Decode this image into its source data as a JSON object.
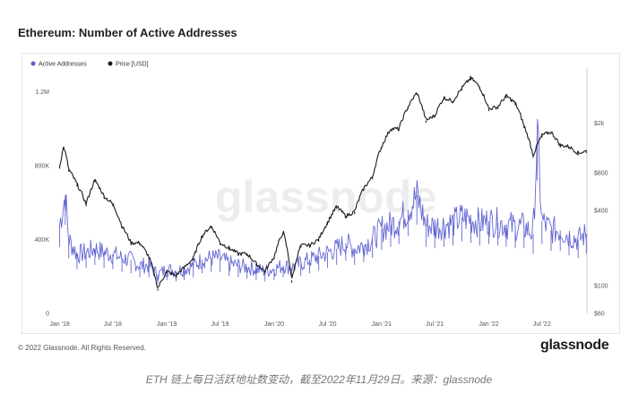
{
  "header": {
    "title": "Ethereum: Number of Active Addresses"
  },
  "footer": {
    "copyright": "© 2022 Glassnode. All Rights Reserved.",
    "logo_text": "glassnode",
    "caption": "ETH 链上每日活跃地址数变动，截至2022年11月29日。来源：glassnode"
  },
  "watermark": "glassnode",
  "chart_data": {
    "type": "line",
    "title": "Ethereum: Number of Active Addresses",
    "x_ticks": [
      "Jan '18",
      "Jul '18",
      "Jan '19",
      "Jul '19",
      "Jan '20",
      "Jul '20",
      "Jan '21",
      "Jul '21",
      "Jan '22",
      "Jul '22"
    ],
    "left_axis": {
      "ticks": [
        "0",
        "400K",
        "800K",
        "1.2M"
      ],
      "range": [
        0,
        1300000
      ]
    },
    "right_axis": {
      "ticks": [
        "$60",
        "$100",
        "$400",
        "$800",
        "$2k"
      ],
      "scale": "log",
      "range": [
        60,
        5000
      ]
    },
    "legend": {
      "position": "top-left"
    },
    "grid": false,
    "series": [
      {
        "name": "Active Addresses",
        "axis": "left",
        "color": "#5b5fd1",
        "points": [
          [
            "2018-01",
            480000
          ],
          [
            "2018-01-20",
            640000
          ],
          [
            "2018-02",
            400000
          ],
          [
            "2018-03",
            320000
          ],
          [
            "2018-04",
            330000
          ],
          [
            "2018-05",
            350000
          ],
          [
            "2018-06",
            330000
          ],
          [
            "2018-07",
            320000
          ],
          [
            "2018-08",
            300000
          ],
          [
            "2018-09",
            290000
          ],
          [
            "2018-10",
            260000
          ],
          [
            "2018-11",
            260000
          ],
          [
            "2018-12",
            210000
          ],
          [
            "2019-01",
            240000
          ],
          [
            "2019-02",
            230000
          ],
          [
            "2019-03",
            240000
          ],
          [
            "2019-04",
            260000
          ],
          [
            "2019-05",
            290000
          ],
          [
            "2019-06",
            300000
          ],
          [
            "2019-07",
            300000
          ],
          [
            "2019-08",
            270000
          ],
          [
            "2019-09",
            260000
          ],
          [
            "2019-10",
            250000
          ],
          [
            "2019-11",
            240000
          ],
          [
            "2019-12",
            230000
          ],
          [
            "2020-01",
            240000
          ],
          [
            "2020-02",
            260000
          ],
          [
            "2020-03",
            250000
          ],
          [
            "2020-04",
            270000
          ],
          [
            "2020-05",
            290000
          ],
          [
            "2020-06",
            310000
          ],
          [
            "2020-07",
            330000
          ],
          [
            "2020-08",
            350000
          ],
          [
            "2020-09",
            380000
          ],
          [
            "2020-10",
            350000
          ],
          [
            "2020-11",
            370000
          ],
          [
            "2020-12",
            400000
          ],
          [
            "2021-01",
            460000
          ],
          [
            "2021-02",
            480000
          ],
          [
            "2021-03",
            500000
          ],
          [
            "2021-04",
            560000
          ],
          [
            "2021-05",
            640000
          ],
          [
            "2021-06",
            480000
          ],
          [
            "2021-07",
            470000
          ],
          [
            "2021-08",
            480000
          ],
          [
            "2021-09",
            490000
          ],
          [
            "2021-10",
            520000
          ],
          [
            "2021-11",
            510000
          ],
          [
            "2021-12",
            490000
          ],
          [
            "2022-01",
            500000
          ],
          [
            "2022-02",
            490000
          ],
          [
            "2022-03",
            480000
          ],
          [
            "2022-04",
            470000
          ],
          [
            "2022-05",
            470000
          ],
          [
            "2022-06",
            430000
          ],
          [
            "2022-06-15",
            960000
          ],
          [
            "2022-07",
            500000
          ],
          [
            "2022-08",
            450000
          ],
          [
            "2022-09",
            450000
          ],
          [
            "2022-10",
            420000
          ],
          [
            "2022-11",
            400000
          ],
          [
            "2022-11-29",
            430000
          ]
        ]
      },
      {
        "name": "Price [USD]",
        "axis": "right",
        "color": "#1a1a1a",
        "points": [
          [
            "2018-01",
            900
          ],
          [
            "2018-01-15",
            1300
          ],
          [
            "2018-02",
            850
          ],
          [
            "2018-03",
            650
          ],
          [
            "2018-04",
            450
          ],
          [
            "2018-05",
            700
          ],
          [
            "2018-06",
            520
          ],
          [
            "2018-07",
            450
          ],
          [
            "2018-08",
            300
          ],
          [
            "2018-09",
            220
          ],
          [
            "2018-10",
            220
          ],
          [
            "2018-11",
            170
          ],
          [
            "2018-12",
            95
          ],
          [
            "2019-01",
            130
          ],
          [
            "2019-02",
            120
          ],
          [
            "2019-03",
            140
          ],
          [
            "2019-04",
            165
          ],
          [
            "2019-05",
            250
          ],
          [
            "2019-06",
            300
          ],
          [
            "2019-07",
            220
          ],
          [
            "2019-08",
            200
          ],
          [
            "2019-09",
            180
          ],
          [
            "2019-10",
            180
          ],
          [
            "2019-11",
            150
          ],
          [
            "2019-12",
            130
          ],
          [
            "2020-01",
            170
          ],
          [
            "2020-02",
            270
          ],
          [
            "2020-03",
            110
          ],
          [
            "2020-04",
            210
          ],
          [
            "2020-05",
            210
          ],
          [
            "2020-06",
            235
          ],
          [
            "2020-07",
            320
          ],
          [
            "2020-08",
            430
          ],
          [
            "2020-09",
            360
          ],
          [
            "2020-10",
            390
          ],
          [
            "2020-11",
            600
          ],
          [
            "2020-12",
            740
          ],
          [
            "2021-01",
            1300
          ],
          [
            "2021-02",
            1800
          ],
          [
            "2021-03",
            1800
          ],
          [
            "2021-04",
            2700
          ],
          [
            "2021-05",
            3500
          ],
          [
            "2021-06",
            2100
          ],
          [
            "2021-07",
            2300
          ],
          [
            "2021-08",
            3200
          ],
          [
            "2021-09",
            3000
          ],
          [
            "2021-10",
            3800
          ],
          [
            "2021-11",
            4600
          ],
          [
            "2021-12",
            3900
          ],
          [
            "2022-01",
            2600
          ],
          [
            "2022-02",
            2700
          ],
          [
            "2022-03",
            3300
          ],
          [
            "2022-04",
            2900
          ],
          [
            "2022-05",
            1900
          ],
          [
            "2022-06",
            1100
          ],
          [
            "2022-07",
            1600
          ],
          [
            "2022-08",
            1700
          ],
          [
            "2022-09",
            1330
          ],
          [
            "2022-10",
            1300
          ],
          [
            "2022-11",
            1150
          ],
          [
            "2022-11-29",
            1200
          ]
        ]
      }
    ]
  }
}
